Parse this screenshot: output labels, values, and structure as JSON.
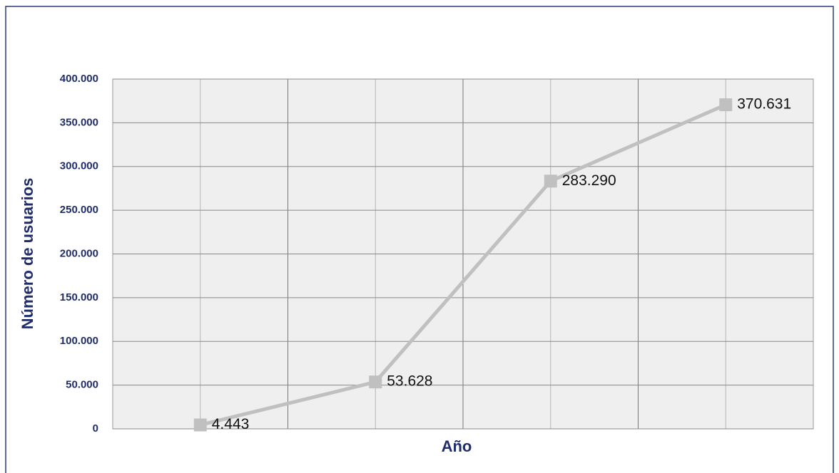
{
  "chart_data": {
    "type": "line",
    "x_label": "Año",
    "y_label": "Número de usuarios",
    "categories": [
      null,
      null,
      null,
      null
    ],
    "series": [
      {
        "color": "#c0c0c0",
        "values": [
          4443,
          53628,
          283290,
          370631
        ],
        "value_labels": [
          "4.443",
          "53.628",
          "283.290",
          "370.631"
        ]
      }
    ],
    "ylim": [
      0,
      400000
    ],
    "yticks": [
      {
        "value": 0,
        "label": "0"
      },
      {
        "value": 50000,
        "label": "50.000"
      },
      {
        "value": 100000,
        "label": "100.000"
      },
      {
        "value": 150000,
        "label": "150.000"
      },
      {
        "value": 200000,
        "label": "200.000"
      },
      {
        "value": 250000,
        "label": "250.000"
      },
      {
        "value": 300000,
        "label": "300.000"
      },
      {
        "value": 350000,
        "label": "350.000"
      },
      {
        "value": 400000,
        "label": "400.000"
      }
    ],
    "grid": true
  }
}
